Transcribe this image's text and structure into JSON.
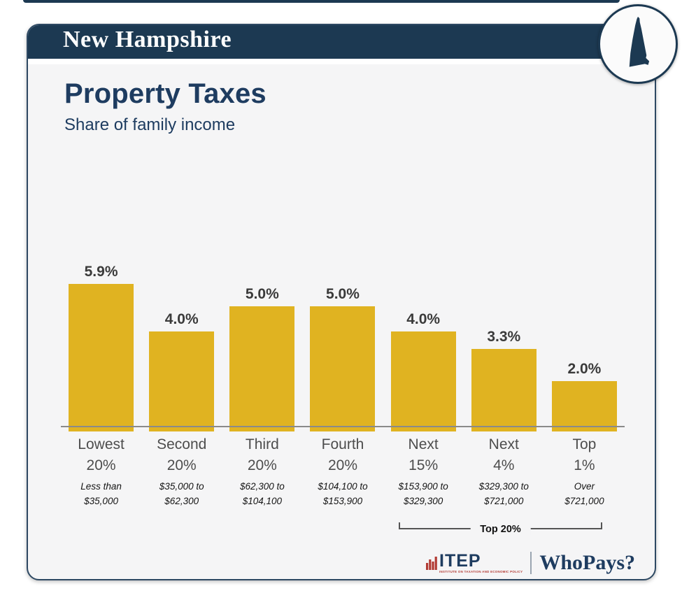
{
  "header": {
    "state_name": "New Hampshire"
  },
  "main": {
    "title": "Property Taxes",
    "subtitle": "Share of family income"
  },
  "chart_data": {
    "type": "bar",
    "title": "Property Taxes",
    "subtitle": "Share of family income",
    "xlabel": "",
    "ylabel": "Share of family income (%)",
    "ylim": [
      0,
      6.5
    ],
    "grid": false,
    "legend": "none",
    "bar_color": "#e0b321",
    "categories": [
      "Lowest 20%",
      "Second 20%",
      "Third 20%",
      "Fourth 20%",
      "Next 15%",
      "Next 4%",
      "Top 1%"
    ],
    "values": [
      5.9,
      4.0,
      5.0,
      5.0,
      4.0,
      3.3,
      2.0
    ],
    "value_labels": [
      "5.9%",
      "4.0%",
      "5.0%",
      "5.0%",
      "4.0%",
      "3.3%",
      "2.0%"
    ],
    "category_lines": [
      [
        "Lowest",
        "20%"
      ],
      [
        "Second",
        "20%"
      ],
      [
        "Third",
        "20%"
      ],
      [
        "Fourth",
        "20%"
      ],
      [
        "Next",
        "15%"
      ],
      [
        "Next",
        "4%"
      ],
      [
        "Top",
        "1%"
      ]
    ],
    "income_ranges": [
      [
        "Less than",
        "$35,000"
      ],
      [
        "$35,000 to",
        "$62,300"
      ],
      [
        "$62,300 to",
        "$104,100"
      ],
      [
        "$104,100 to",
        "$153,900"
      ],
      [
        "$153,900 to",
        "$329,300"
      ],
      [
        "$329,300 to",
        "$721,000"
      ],
      [
        "Over",
        "$721,000"
      ]
    ],
    "annotation": {
      "label": "Top 20%",
      "span_columns": [
        4,
        6
      ]
    }
  },
  "footer": {
    "itep_wordmark": "ITEP",
    "itep_tagline": "INSTITUTE ON TAXATION AND ECONOMIC POLICY",
    "brand": "WhoPays?"
  },
  "colors": {
    "navy": "#1c3952",
    "title_navy": "#1e3c60",
    "gold": "#e0b321",
    "logo_red": "#b23b34",
    "card_bg": "#f5f5f6"
  }
}
